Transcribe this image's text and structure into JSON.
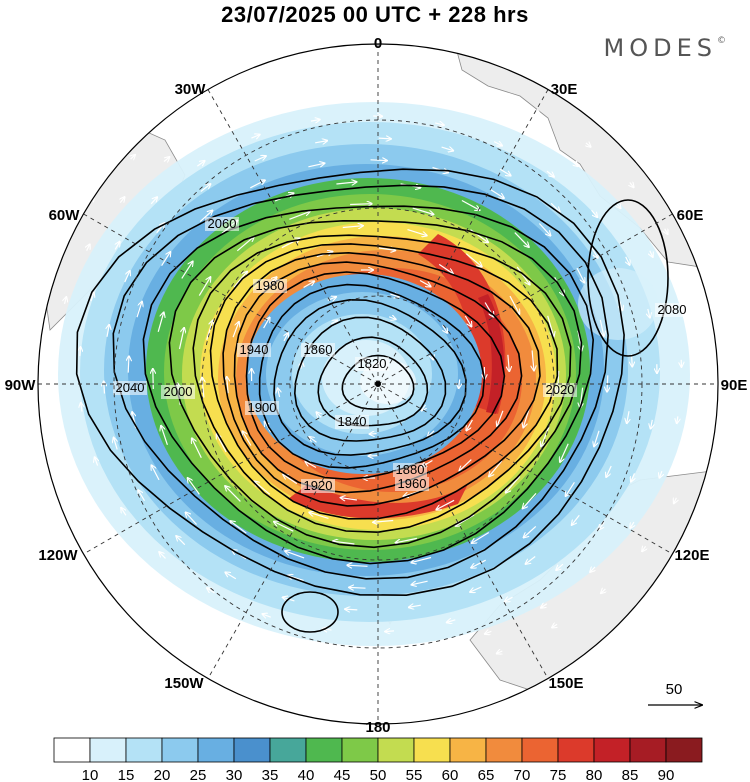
{
  "header": {
    "title": "23/07/2025  00 UTC  + 228 hrs",
    "brand": "MODES",
    "brand_mark": "©"
  },
  "longitude_labels": [
    "0",
    "30E",
    "60E",
    "90E",
    "120E",
    "150E",
    "180",
    "150W",
    "120W",
    "90W",
    "60W",
    "30W"
  ],
  "contour_labels": [
    "1820",
    "1840",
    "1860",
    "1880",
    "1900",
    "1920",
    "1940",
    "1960",
    "1980",
    "2000",
    "2020",
    "2040",
    "2060",
    "2080"
  ],
  "wind_reference": {
    "value": "50"
  },
  "colorbar": {
    "labels": [
      "10",
      "15",
      "20",
      "25",
      "30",
      "35",
      "40",
      "45",
      "50",
      "55",
      "60",
      "65",
      "70",
      "75",
      "80",
      "85",
      "90"
    ],
    "colors": [
      "#ffffff",
      "#d8f1fb",
      "#b4e2f6",
      "#8ccaee",
      "#68afe2",
      "#4a90cd",
      "#47a79a",
      "#4fb84f",
      "#7ec948",
      "#c3dc50",
      "#f7df4f",
      "#f7b445",
      "#f18b3d",
      "#eb6432",
      "#dc3a2b",
      "#c32127",
      "#a61c24",
      "#8a1b1f"
    ]
  }
}
